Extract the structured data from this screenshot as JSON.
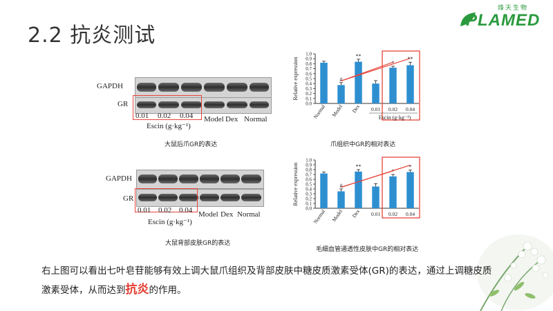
{
  "slide": {
    "title": "2.2 抗炎测试",
    "brand_sub": "烽天生物",
    "brand_main": "PLAMED"
  },
  "colors": {
    "bar": "#2e8fd0",
    "highlight": "#e8443a",
    "brand": "#2b9a3e"
  },
  "blot_top": {
    "row_labels": [
      "GAPDH",
      "GR"
    ],
    "dose_labels": [
      "0.01",
      "0.02",
      "0.04"
    ],
    "escin_label": "Escin (g·kg⁻¹)",
    "group_labels": [
      "Model",
      "Dex",
      "Normal"
    ],
    "caption": "大鼠后爪GR的表达"
  },
  "blot_bottom": {
    "row_labels": [
      "GAPDH",
      "GR"
    ],
    "dose_labels": [
      "0.01",
      "0.02",
      "0.04"
    ],
    "escin_label": "Escin (g·kg⁻¹)",
    "group_labels": [
      "Model",
      "Dex",
      "Normal"
    ],
    "caption": "大鼠背部皮肤GR的表达"
  },
  "chart_data": [
    {
      "type": "bar",
      "ylabel": "Relative expression",
      "xlabel": "Escin (g·kg⁻¹)",
      "categories": [
        "Normal",
        "Model",
        "Dex",
        "0.01",
        "0.02",
        "0.04"
      ],
      "values": [
        0.82,
        0.37,
        0.84,
        0.4,
        0.72,
        0.77
      ],
      "errors": [
        0.03,
        0.05,
        0.05,
        0.06,
        0.03,
        0.06
      ],
      "annotations": [
        "",
        "#",
        "**",
        "",
        "*",
        "**"
      ],
      "yticks": [
        "0.0",
        "0.1",
        "0.2",
        "0.3",
        "0.4",
        "0.5",
        "0.6",
        "0.7",
        "0.8",
        "0.9",
        "1.0"
      ],
      "ylim": [
        0,
        1.0
      ],
      "caption": "爪组织中GR的相对表达"
    },
    {
      "type": "bar",
      "ylabel": "Relative expression",
      "xlabel": "",
      "categories": [
        "Normal",
        "Model",
        "Dex",
        "0.01",
        "0.02",
        "0.04"
      ],
      "values": [
        0.72,
        0.35,
        0.76,
        0.45,
        0.66,
        0.75
      ],
      "errors": [
        0.03,
        0.05,
        0.04,
        0.06,
        0.04,
        0.04
      ],
      "annotations": [
        "",
        "#",
        "**",
        "",
        "*",
        "*"
      ],
      "yticks": [
        "0.0",
        "0.1",
        "0.2",
        "0.3",
        "0.4",
        "0.5",
        "0.6",
        "0.7",
        "0.8",
        "0.9",
        "1.0"
      ],
      "ylim": [
        0,
        1.0
      ],
      "caption": "毛细血管通透性皮肤中GR的相对表达"
    }
  ],
  "paragraph": {
    "part1": "右上图可以看出七叶皂苷能够有效上调大鼠爪组织及背部皮肤中糖皮质激素受体(GR)的表达，通过上调糖皮质激素受体，从而达到",
    "highlight": "抗炎",
    "part2": "的作用。"
  }
}
